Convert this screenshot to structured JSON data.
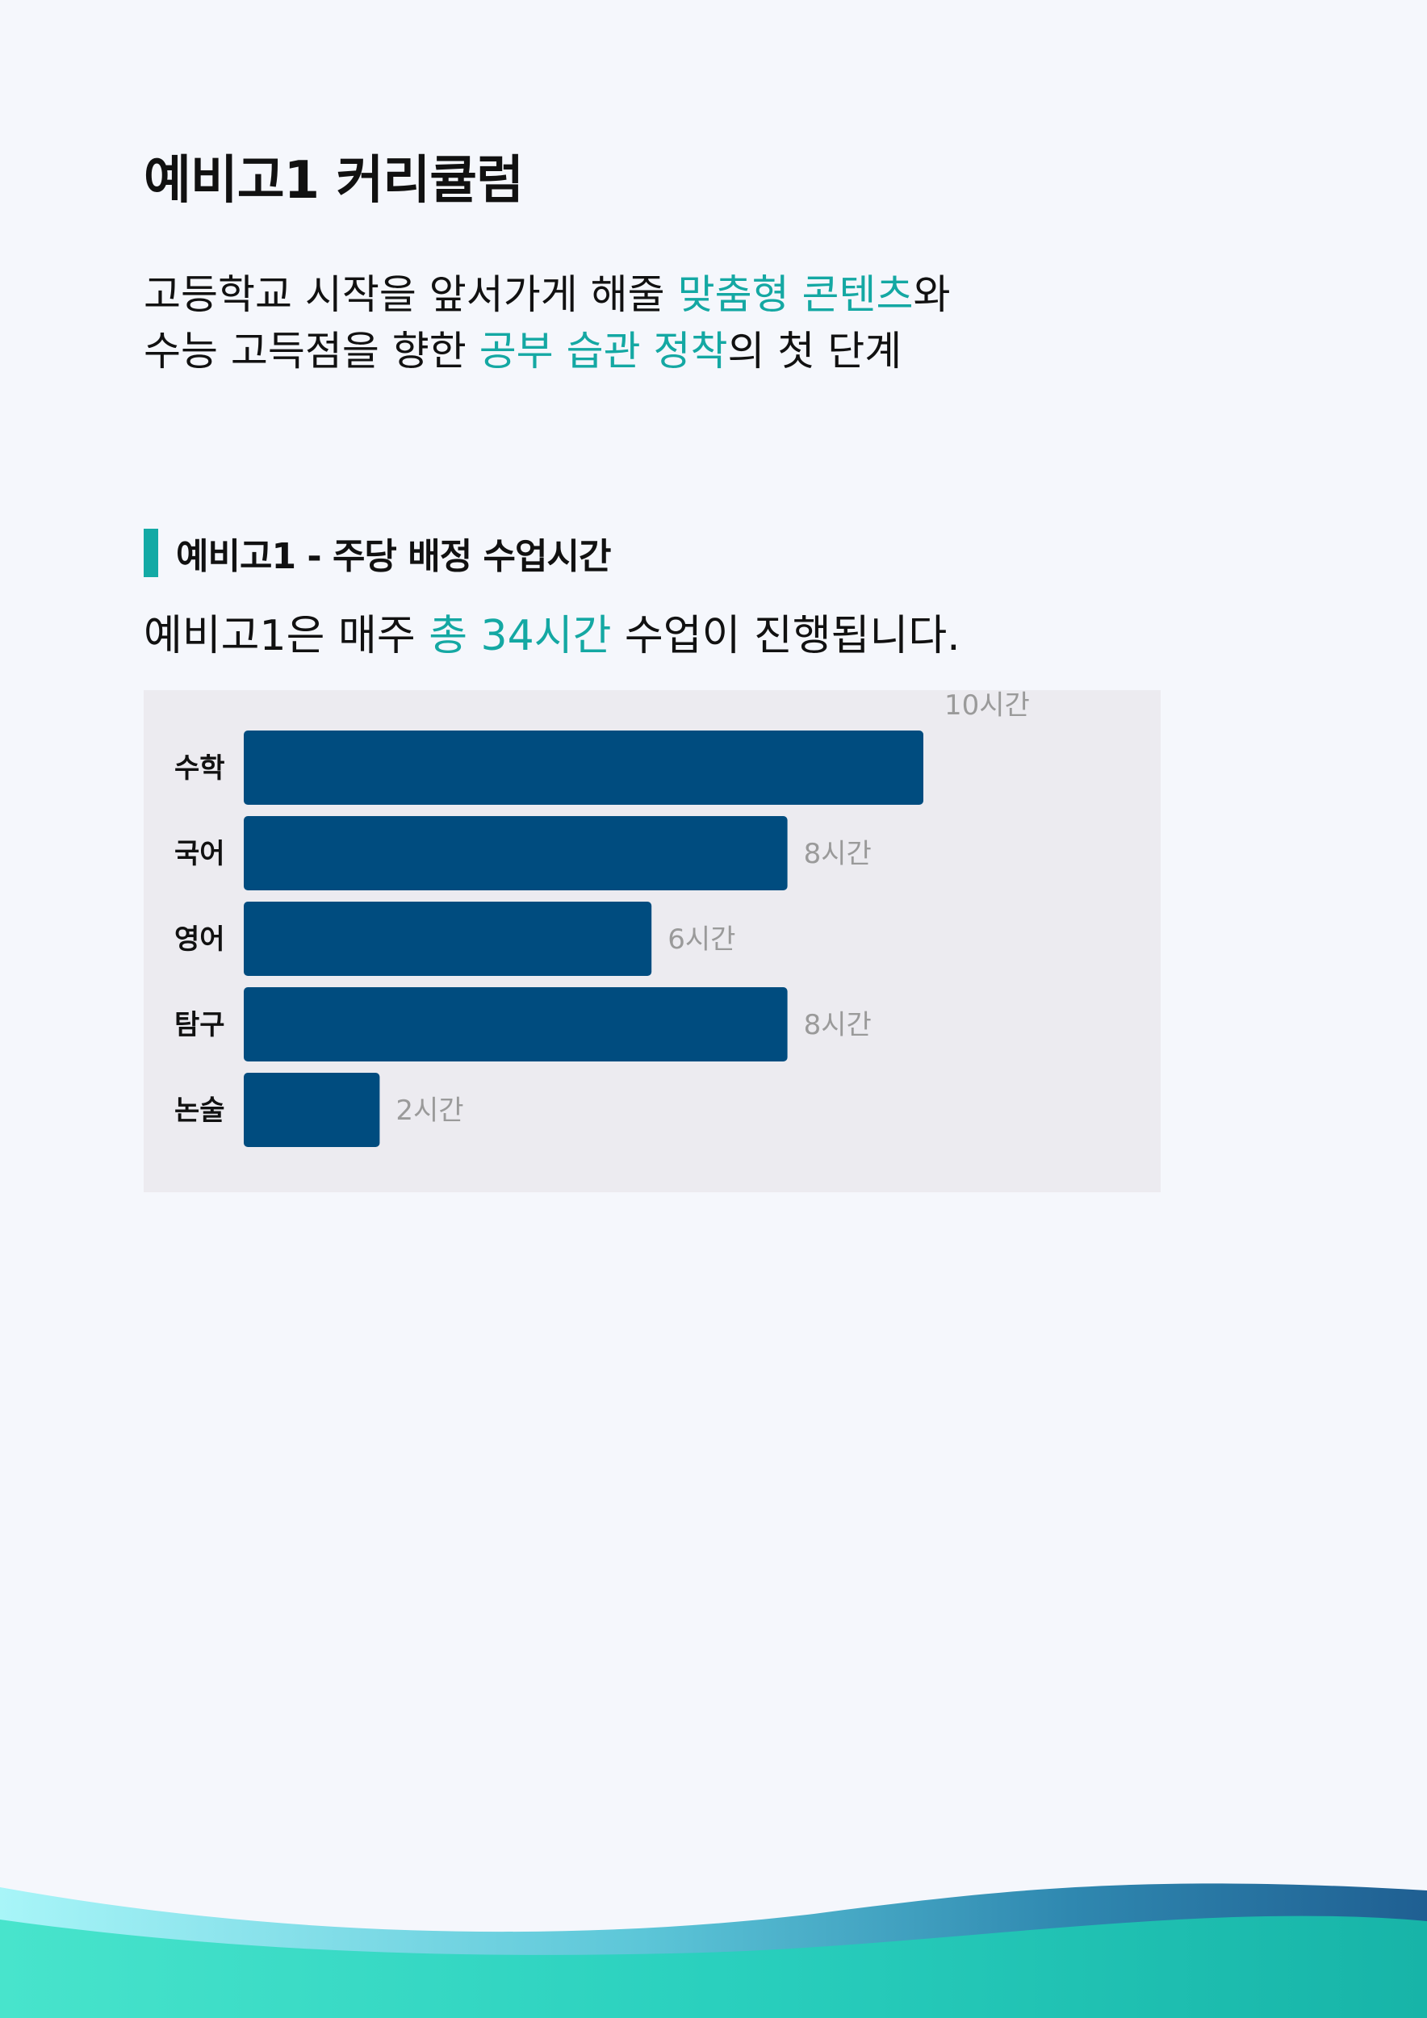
{
  "header": {
    "title": "예비고1 커리큘럼"
  },
  "intro": {
    "line1_a": "고등학교 시작을 앞서가게 해줄 ",
    "line1_hl": "맞춤형 콘텐츠",
    "line1_b": "와",
    "line2_a": "수능 고득점을 향한 ",
    "line2_hl": "공부 습관 정착",
    "line2_b": "의 첫 단계"
  },
  "section": {
    "heading": "예비고1 - 주당 배정 수업시간",
    "summary_a": "예비고1은 매주 ",
    "summary_hl": "총 34시간",
    "summary_b": " 수업이 진행됩니다."
  },
  "colors": {
    "accent": "#14a8a3",
    "bar": "#004c7f",
    "panel": "#ecebf0",
    "value_text": "#9a9a9a"
  },
  "chart_data": {
    "type": "bar",
    "orientation": "horizontal",
    "categories": [
      "수학",
      "국어",
      "영어",
      "탐구",
      "논술"
    ],
    "values": [
      10,
      8,
      6,
      8,
      2
    ],
    "value_labels": [
      "10시간",
      "8시간",
      "6시간",
      "8시간",
      "2시간"
    ],
    "title": "",
    "xlabel": "",
    "ylabel": "",
    "xlim": [
      0,
      10
    ],
    "grid": false,
    "legend": "none"
  }
}
